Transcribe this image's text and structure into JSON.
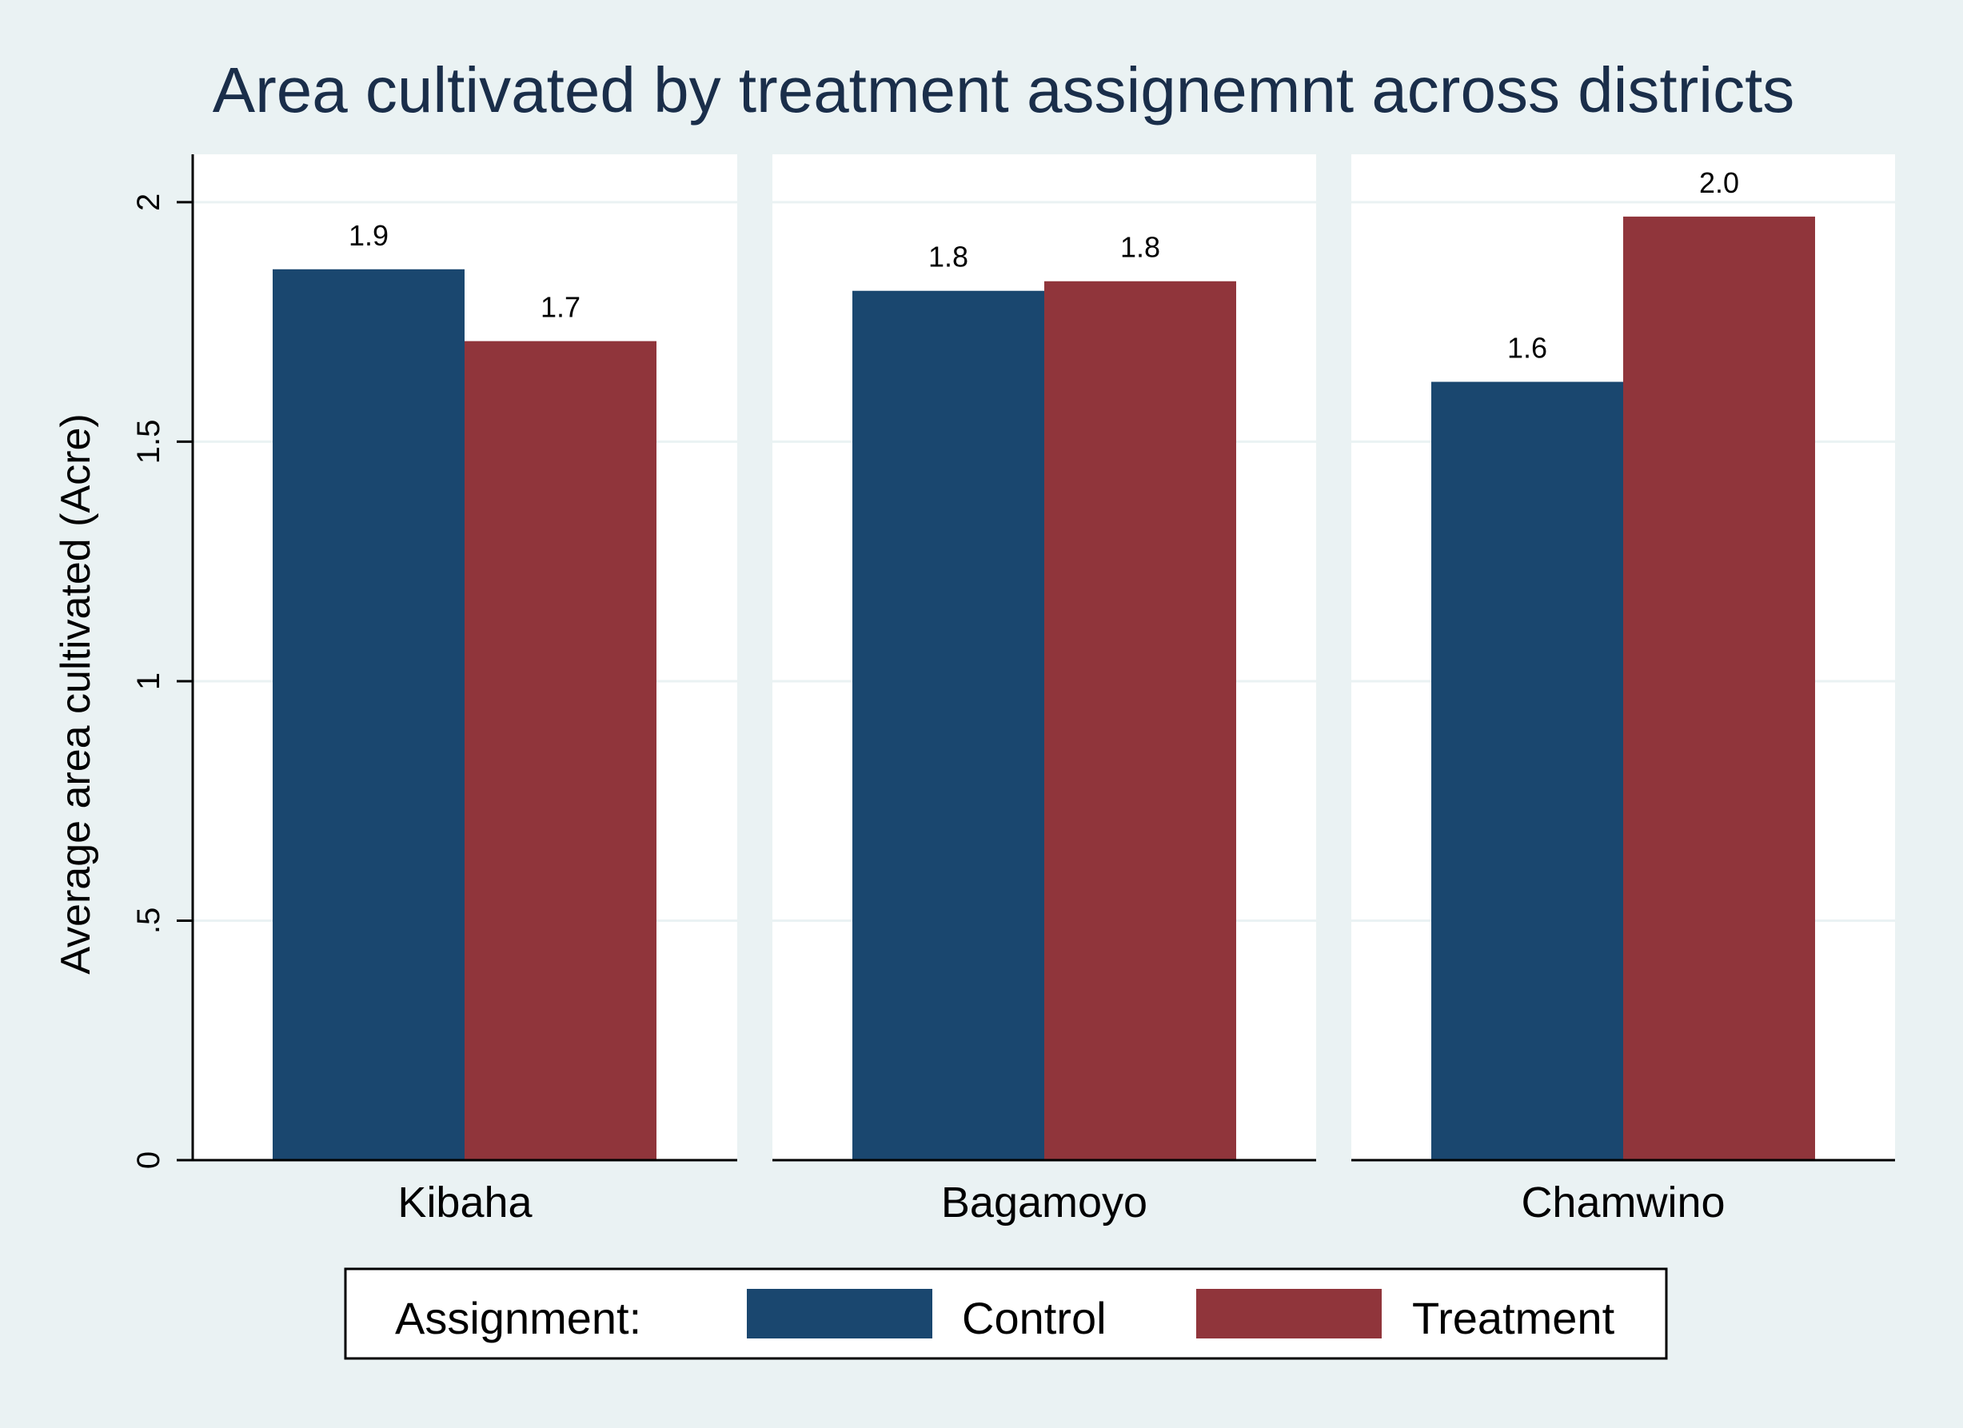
{
  "chart_data": {
    "type": "bar",
    "title": "Area cultivated by treatment assignemnt across districts",
    "ylabel": "Average area cultivated (Acre)",
    "xlabel": "",
    "ylim": [
      0,
      2.1
    ],
    "yticks": [
      {
        "value": 0,
        "label": "0"
      },
      {
        "value": 0.5,
        "label": ".5"
      },
      {
        "value": 1,
        "label": "1"
      },
      {
        "value": 1.5,
        "label": "1.5"
      },
      {
        "value": 2,
        "label": "2"
      }
    ],
    "grid": true,
    "categories": [
      "Kibaha",
      "Bagamoyo",
      "Chamwino"
    ],
    "series": [
      {
        "name": "Control",
        "color": "#1a476f",
        "values": [
          1.86,
          1.815,
          1.625
        ],
        "labels": [
          "1.9",
          "1.8",
          "1.6"
        ]
      },
      {
        "name": "Treatment",
        "color": "#90353b",
        "values": [
          1.71,
          1.835,
          1.97
        ],
        "labels": [
          "1.7",
          "1.8",
          "2.0"
        ]
      }
    ],
    "legend": {
      "title": "Assignment:",
      "position": "bottom"
    }
  },
  "colors": {
    "background": "#eaf2f3",
    "plot": "#ffffff",
    "gridline": "#eaf2f3",
    "title": "#1a2e4a"
  }
}
